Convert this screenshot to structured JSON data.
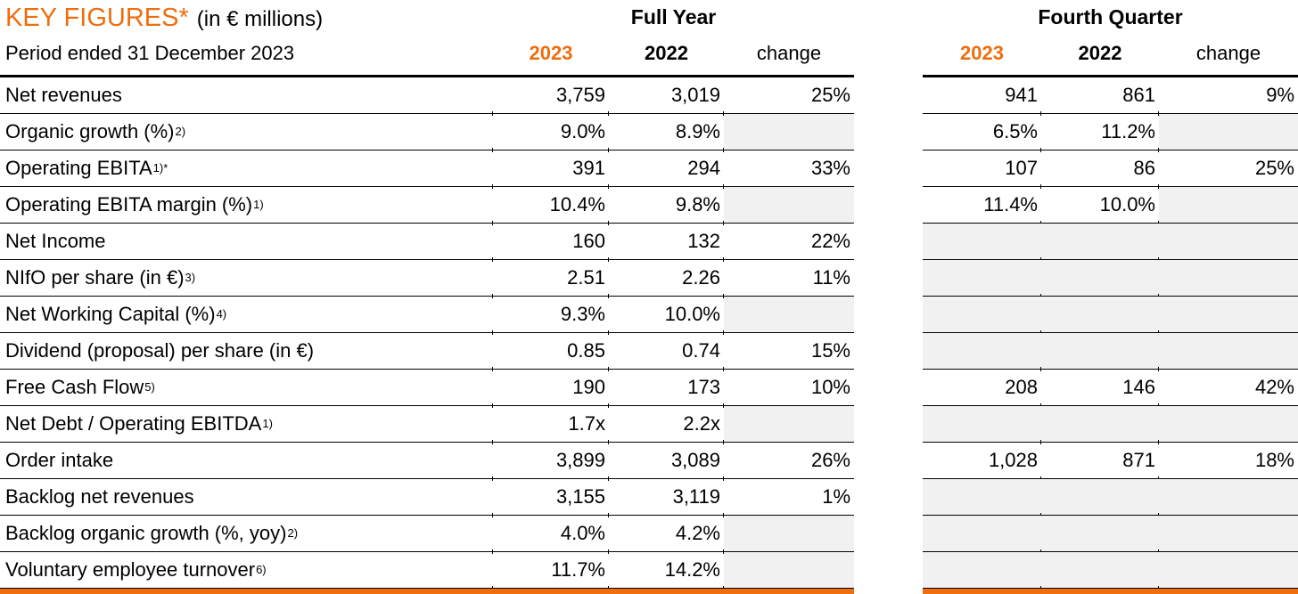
{
  "title": {
    "main": "KEY FIGURES*",
    "unit": "(in € millions)",
    "period": "Period ended 31 December 2023"
  },
  "sections": {
    "full_year": "Full Year",
    "fourth_quarter": "Fourth Quarter"
  },
  "columns": {
    "y2023": "2023",
    "y2022": "2022",
    "change": "change"
  },
  "colors": {
    "accent": "#EE6E0D",
    "row_shading": "#F1F1F1",
    "text": "#000000"
  },
  "rows": [
    {
      "label": "Net revenues",
      "sup": "",
      "fy": [
        "3,759",
        "3,019",
        "25%"
      ],
      "q": [
        "941",
        "861",
        "9%"
      ]
    },
    {
      "label": "Organic growth (%)",
      "sup": "2)",
      "fy": [
        "9.0%",
        "8.9%",
        ""
      ],
      "q": [
        "6.5%",
        "11.2%",
        ""
      ]
    },
    {
      "label": "Operating EBITA",
      "sup": "1)*",
      "fy": [
        "391",
        "294",
        "33%"
      ],
      "q": [
        "107",
        "86",
        "25%"
      ]
    },
    {
      "label": "Operating EBITA margin (%)",
      "sup": "1)",
      "fy": [
        "10.4%",
        "9.8%",
        ""
      ],
      "q": [
        "11.4%",
        "10.0%",
        ""
      ]
    },
    {
      "label": "Net Income",
      "sup": "",
      "fy": [
        "160",
        "132",
        "22%"
      ],
      "q": [
        "",
        "",
        ""
      ]
    },
    {
      "label": "NIfO per share (in €)",
      "sup": "3)",
      "fy": [
        "2.51",
        "2.26",
        "11%"
      ],
      "q": [
        "",
        "",
        ""
      ]
    },
    {
      "label": "Net Working Capital (%)",
      "sup": "4)",
      "fy": [
        "9.3%",
        "10.0%",
        ""
      ],
      "q": [
        "",
        "",
        ""
      ]
    },
    {
      "label": "Dividend (proposal) per share (in €)",
      "sup": "",
      "fy": [
        "0.85",
        "0.74",
        "15%"
      ],
      "q": [
        "",
        "",
        ""
      ]
    },
    {
      "label": "Free Cash Flow",
      "sup": "5)",
      "fy": [
        "190",
        "173",
        "10%"
      ],
      "q": [
        "208",
        "146",
        "42%"
      ]
    },
    {
      "label": "Net Debt / Operating EBITDA",
      "sup": "1)",
      "fy": [
        "1.7x",
        "2.2x",
        ""
      ],
      "q": [
        "",
        "",
        ""
      ]
    },
    {
      "label": "Order intake",
      "sup": "",
      "fy": [
        "3,899",
        "3,089",
        "26%"
      ],
      "q": [
        "1,028",
        "871",
        "18%"
      ]
    },
    {
      "label": "Backlog net revenues",
      "sup": "",
      "fy": [
        "3,155",
        "3,119",
        "1%"
      ],
      "q": [
        "",
        "",
        ""
      ]
    },
    {
      "label": "Backlog organic growth (%, yoy)",
      "sup": "2)",
      "fy": [
        "4.0%",
        "4.2%",
        ""
      ],
      "q": [
        "",
        "",
        ""
      ]
    },
    {
      "label": "Voluntary employee turnover",
      "sup": "6)",
      "fy": [
        "11.7%",
        "14.2%",
        ""
      ],
      "q": [
        "",
        "",
        ""
      ]
    }
  ]
}
